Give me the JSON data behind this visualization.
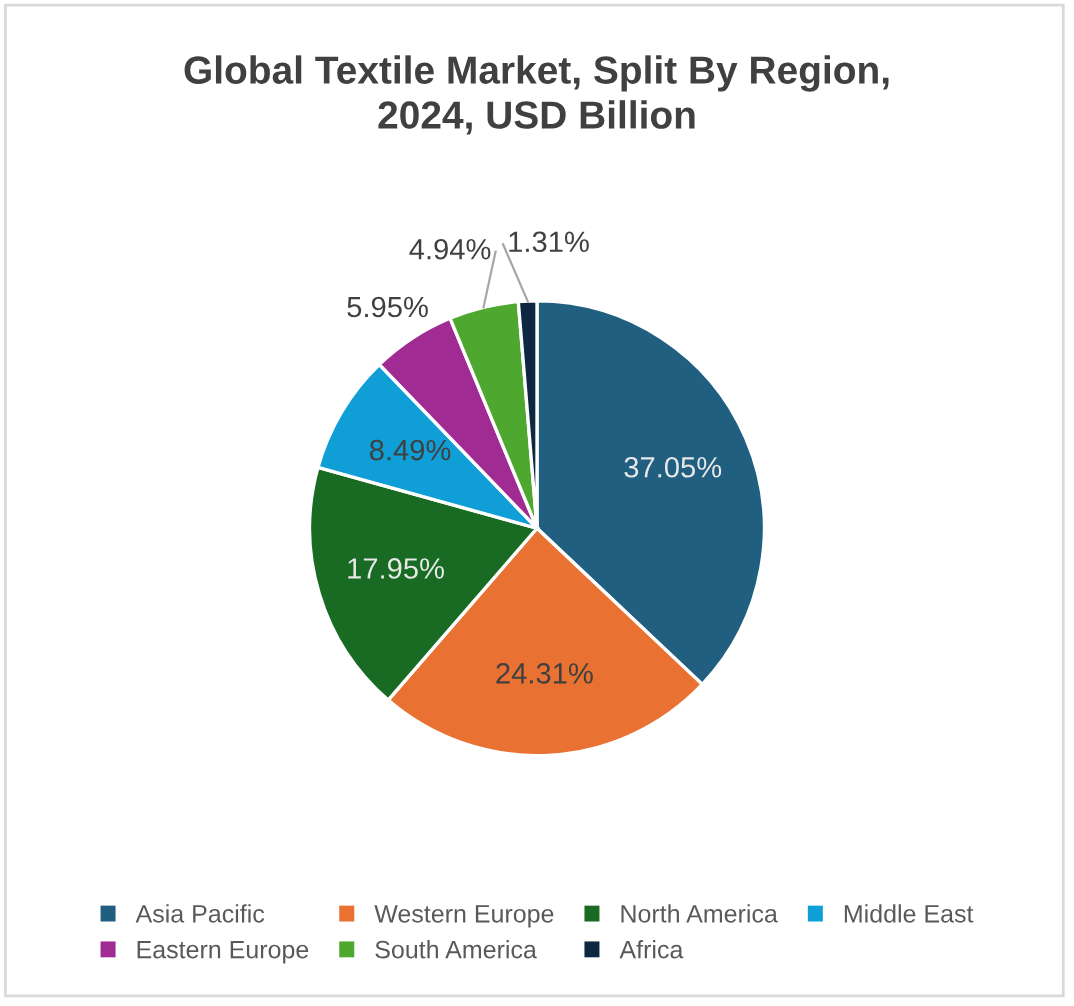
{
  "chart_data": {
    "type": "pie",
    "title": "Global Textile Market, Split By Region,\n2024, USD Billion",
    "categories": [
      "Asia Pacific",
      "Western Europe",
      "North America",
      "Middle East",
      "Eastern Europe",
      "South America",
      "Africa"
    ],
    "values": [
      37.05,
      24.31,
      17.95,
      8.49,
      5.95,
      4.94,
      1.31
    ],
    "colors": [
      "#215f80",
      "#e97132",
      "#196b24",
      "#0f9ed5",
      "#a02b93",
      "#4ea72e",
      "#0e2841"
    ],
    "value_labels": [
      "37.05%",
      "24.31%",
      "17.95%",
      "8.49%",
      "5.95%",
      "4.94%",
      "1.31%"
    ],
    "legend": "bottom"
  }
}
